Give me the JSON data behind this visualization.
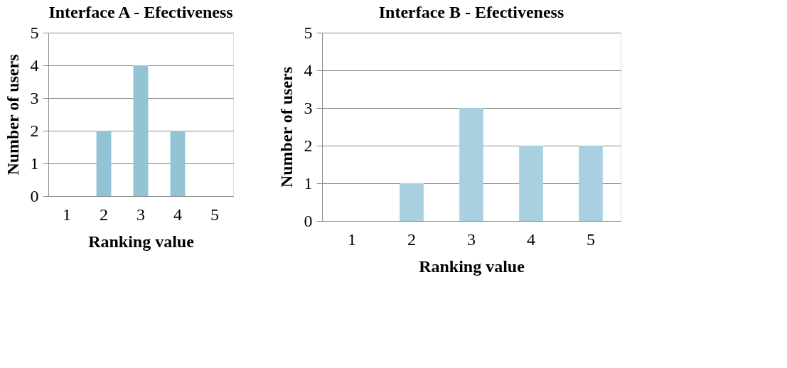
{
  "chart_data": [
    {
      "type": "bar",
      "title": "Interface A - Efectiveness",
      "xlabel": "Ranking value",
      "ylabel": "Number of users",
      "categories": [
        "1",
        "2",
        "3",
        "4",
        "5"
      ],
      "values": [
        0,
        2,
        4,
        2,
        0
      ],
      "color": "#92c4d6",
      "ylim": [
        0,
        5
      ],
      "yticks": [
        0,
        1,
        2,
        3,
        4,
        5
      ],
      "grid": "y"
    },
    {
      "type": "bar",
      "title": "Interface B - Efectiveness",
      "xlabel": "Ranking value",
      "ylabel": "Number of users",
      "categories": [
        "1",
        "2",
        "3",
        "4",
        "5"
      ],
      "values": [
        0,
        1,
        3,
        2,
        2
      ],
      "color": "#a8d0e0",
      "ylim": [
        0,
        5
      ],
      "yticks": [
        0,
        1,
        2,
        3,
        4,
        5
      ],
      "grid": "y"
    }
  ]
}
